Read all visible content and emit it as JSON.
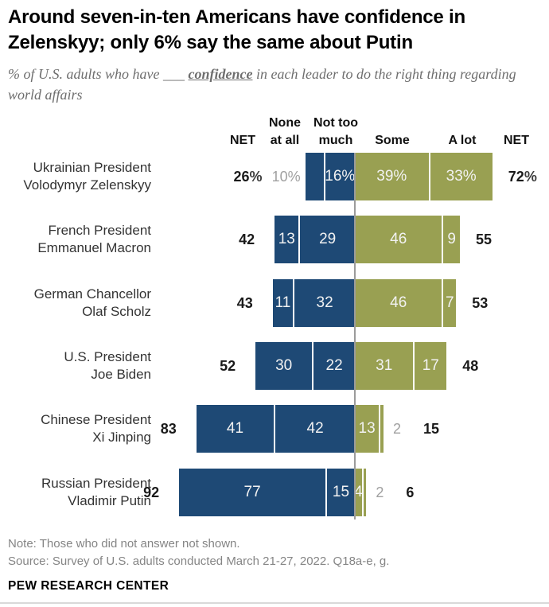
{
  "title": "Around seven-in-ten Americans have confidence in Zelenskyy; only 6% say the same about Putin",
  "subtitle": {
    "prefix": "% of U.S. adults who have ",
    "blank": "___",
    "emphasis": "confidence",
    "suffix": " in each leader to do the right thing regarding world affairs"
  },
  "column_headers": {
    "net_left": "NET",
    "none_at_all_line1": "None",
    "none_at_all_line2": "at all",
    "not_too_much_line1": "Not too",
    "not_too_much_line2": "much",
    "some": "Some",
    "a_lot": "A lot",
    "net_right": "NET"
  },
  "colors": {
    "negative_bar": "#1E4975",
    "positive_bar": "#99A052",
    "inside_label": "#f2f2f2",
    "outside_label": "#a0a0a0",
    "axis_line": "#9b9b9b"
  },
  "chart_data": {
    "type": "bar",
    "variant": "diverging-stacked-horizontal",
    "unit": "% of U.S. adults",
    "categories": [
      "None at all",
      "Not too much",
      "Some",
      "A lot"
    ],
    "negative_categories": [
      "None at all",
      "Not too much"
    ],
    "positive_categories": [
      "Some",
      "A lot"
    ],
    "axis_center_value": 0,
    "rows": [
      {
        "leader_line1": "Ukrainian President",
        "leader_line2": "Volodymyr Zelenskyy",
        "net_left": "26",
        "net_left_suffix": "%",
        "net_right": "72",
        "net_right_suffix": "%",
        "segments": [
          {
            "category": "None at all",
            "value": 10,
            "label": "10%",
            "label_pos": "out"
          },
          {
            "category": "Not too much",
            "value": 16,
            "label": "16%",
            "label_pos": "in"
          },
          {
            "category": "Some",
            "value": 39,
            "label": "39%",
            "label_pos": "in"
          },
          {
            "category": "A lot",
            "value": 33,
            "label": "33%",
            "label_pos": "in"
          }
        ]
      },
      {
        "leader_line1": "French President",
        "leader_line2": "Emmanuel Macron",
        "net_left": "42",
        "net_left_suffix": "",
        "net_right": "55",
        "net_right_suffix": "",
        "segments": [
          {
            "category": "None at all",
            "value": 13,
            "label": "13",
            "label_pos": "in"
          },
          {
            "category": "Not too much",
            "value": 29,
            "label": "29",
            "label_pos": "in"
          },
          {
            "category": "Some",
            "value": 46,
            "label": "46",
            "label_pos": "in"
          },
          {
            "category": "A lot",
            "value": 9,
            "label": "9",
            "label_pos": "in"
          }
        ]
      },
      {
        "leader_line1": "German Chancellor",
        "leader_line2": "Olaf Scholz",
        "net_left": "43",
        "net_left_suffix": "",
        "net_right": "53",
        "net_right_suffix": "",
        "segments": [
          {
            "category": "None at all",
            "value": 11,
            "label": "11",
            "label_pos": "in"
          },
          {
            "category": "Not too much",
            "value": 32,
            "label": "32",
            "label_pos": "in"
          },
          {
            "category": "Some",
            "value": 46,
            "label": "46",
            "label_pos": "in"
          },
          {
            "category": "A lot",
            "value": 7,
            "label": "7",
            "label_pos": "in"
          }
        ]
      },
      {
        "leader_line1": "U.S. President",
        "leader_line2": "Joe Biden",
        "net_left": "52",
        "net_left_suffix": "",
        "net_right": "48",
        "net_right_suffix": "",
        "segments": [
          {
            "category": "None at all",
            "value": 30,
            "label": "30",
            "label_pos": "in"
          },
          {
            "category": "Not too much",
            "value": 22,
            "label": "22",
            "label_pos": "in"
          },
          {
            "category": "Some",
            "value": 31,
            "label": "31",
            "label_pos": "in"
          },
          {
            "category": "A lot",
            "value": 17,
            "label": "17",
            "label_pos": "in"
          }
        ]
      },
      {
        "leader_line1": "Chinese President",
        "leader_line2": "Xi Jinping",
        "net_left": "83",
        "net_left_suffix": "",
        "net_right": "15",
        "net_right_suffix": "",
        "segments": [
          {
            "category": "None at all",
            "value": 41,
            "label": "41",
            "label_pos": "in"
          },
          {
            "category": "Not too much",
            "value": 42,
            "label": "42",
            "label_pos": "in"
          },
          {
            "category": "Some",
            "value": 13,
            "label": "13",
            "label_pos": "in"
          },
          {
            "category": "A lot",
            "value": 2,
            "label": "2",
            "label_pos": "out"
          }
        ]
      },
      {
        "leader_line1": "Russian President",
        "leader_line2": "Vladimir Putin",
        "net_left": "92",
        "net_left_suffix": "",
        "net_right": "6",
        "net_right_suffix": "",
        "segments": [
          {
            "category": "None at all",
            "value": 77,
            "label": "77",
            "label_pos": "in"
          },
          {
            "category": "Not too much",
            "value": 15,
            "label": "15",
            "label_pos": "in"
          },
          {
            "category": "Some",
            "value": 4,
            "label": "4",
            "label_pos": "in"
          },
          {
            "category": "A lot",
            "value": 2,
            "label": "2",
            "label_pos": "out"
          }
        ]
      }
    ]
  },
  "note": "Note: Those who did not answer not shown.",
  "source": "Source: Survey of U.S. adults conducted March 21-27, 2022. Q18a-e, g.",
  "brand": "PEW RESEARCH CENTER"
}
